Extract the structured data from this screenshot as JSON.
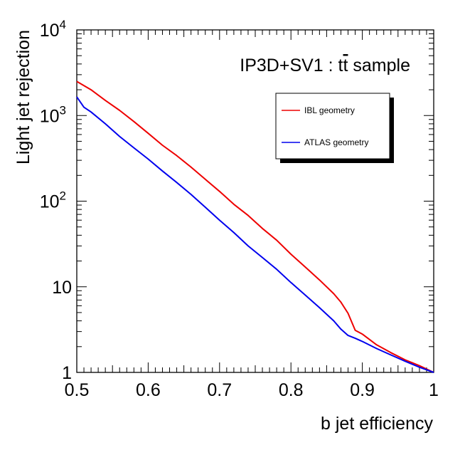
{
  "chart_data": {
    "type": "line",
    "annotation": "IP3D+SV1 : t",
    "annotation_tbar": "t",
    "annotation_tail": " sample",
    "xlabel": "b jet efficiency",
    "ylabel": "Light jet rejection",
    "xlim": [
      0.5,
      1.0
    ],
    "ylim": [
      1,
      10000
    ],
    "yscale": "log",
    "grid": false,
    "legend_position": "top-right",
    "x_ticks": [
      {
        "value": 0.5,
        "label": "0.5"
      },
      {
        "value": 0.6,
        "label": "0.6"
      },
      {
        "value": 0.7,
        "label": "0.7"
      },
      {
        "value": 0.8,
        "label": "0.8"
      },
      {
        "value": 0.9,
        "label": "0.9"
      },
      {
        "value": 1.0,
        "label": "1"
      }
    ],
    "y_ticks": [
      {
        "value": 1,
        "base": "1",
        "exp": ""
      },
      {
        "value": 10,
        "base": "10",
        "exp": ""
      },
      {
        "value": 100,
        "base": "10",
        "exp": "2"
      },
      {
        "value": 1000,
        "base": "10",
        "exp": "3"
      },
      {
        "value": 10000,
        "base": "10",
        "exp": "4"
      }
    ],
    "series": [
      {
        "name": "IBL geometry",
        "color": "#ee0000",
        "x": [
          0.5,
          0.52,
          0.54,
          0.56,
          0.58,
          0.6,
          0.62,
          0.64,
          0.66,
          0.68,
          0.7,
          0.72,
          0.74,
          0.76,
          0.78,
          0.8,
          0.82,
          0.84,
          0.86,
          0.87,
          0.88,
          0.89,
          0.9,
          0.92,
          0.94,
          0.96,
          0.98,
          1.0
        ],
        "y": [
          2500,
          2000,
          1500,
          1150,
          850,
          620,
          450,
          340,
          250,
          180,
          130,
          92,
          68,
          48,
          35,
          24,
          17,
          12,
          8.3,
          6.6,
          4.9,
          3.1,
          2.8,
          2.1,
          1.7,
          1.4,
          1.2,
          1.0
        ]
      },
      {
        "name": "ATLAS geometry",
        "color": "#0000ee",
        "x": [
          0.5,
          0.51,
          0.52,
          0.54,
          0.56,
          0.58,
          0.6,
          0.62,
          0.64,
          0.66,
          0.68,
          0.7,
          0.72,
          0.74,
          0.76,
          0.78,
          0.8,
          0.82,
          0.84,
          0.86,
          0.87,
          0.88,
          0.89,
          0.9,
          0.92,
          0.94,
          0.96,
          0.98,
          1.0
        ],
        "y": [
          1650,
          1250,
          1100,
          800,
          570,
          420,
          310,
          225,
          165,
          120,
          85,
          60,
          43,
          30,
          22,
          16,
          11.2,
          8.0,
          5.7,
          4.0,
          3.2,
          2.7,
          2.5,
          2.3,
          1.9,
          1.6,
          1.35,
          1.15,
          1.0
        ]
      }
    ]
  }
}
